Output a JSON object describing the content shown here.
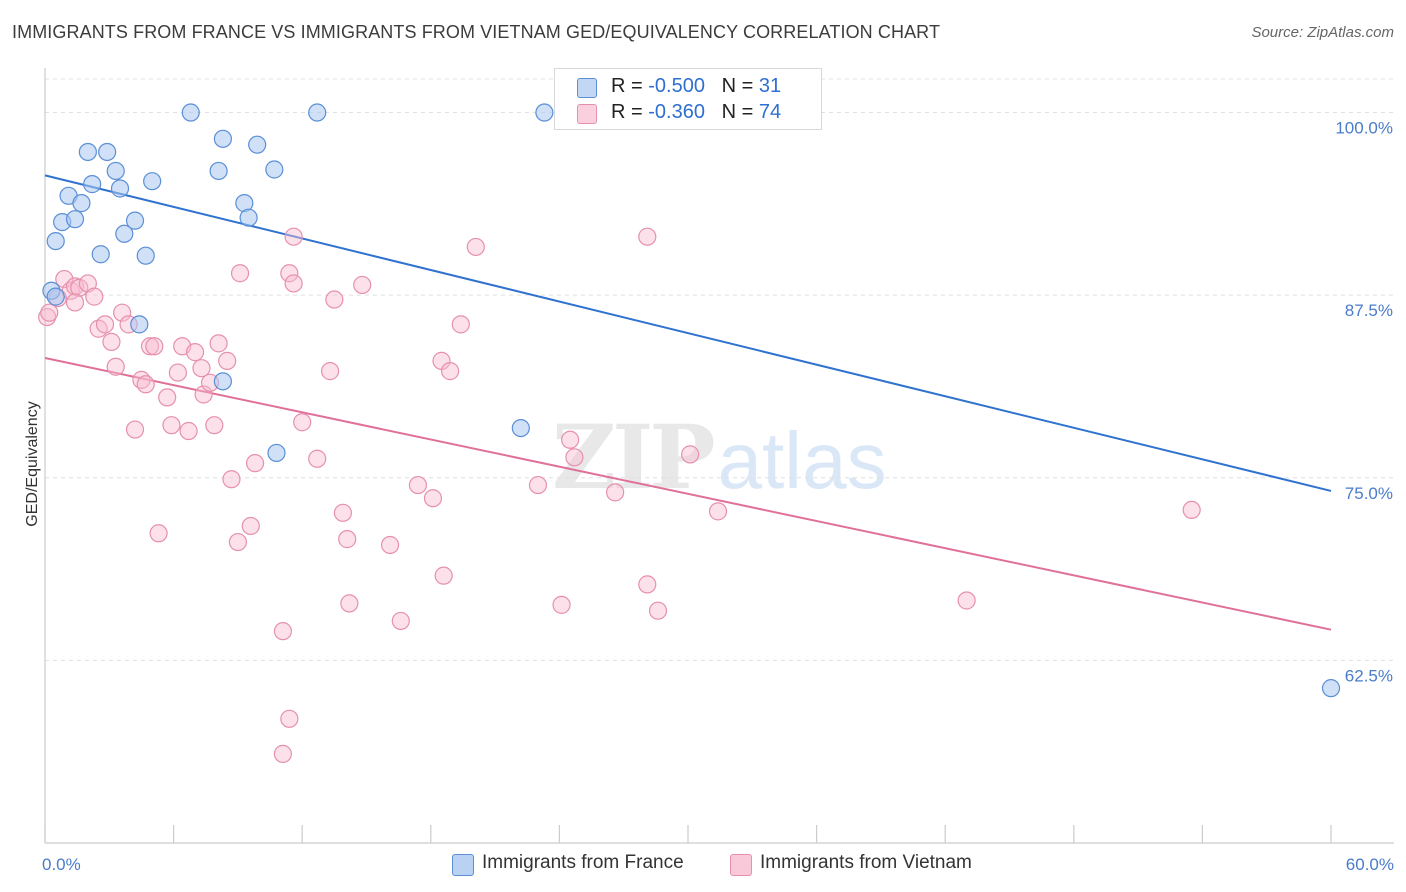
{
  "title": "IMMIGRANTS FROM FRANCE VS IMMIGRANTS FROM VIETNAM GED/EQUIVALENCY CORRELATION CHART",
  "source": "Source: ZipAtlas.com",
  "watermark": {
    "zip": "ZIP",
    "atlas": "atlas"
  },
  "legend_stats": [
    {
      "r_label": "R =",
      "r_value": "-0.500",
      "n_label": "N =",
      "n_value": "31"
    },
    {
      "r_label": "R =",
      "r_value": "-0.360",
      "n_label": "N =",
      "n_value": "74"
    }
  ],
  "colors": {
    "france": "#5b8fd6",
    "vietnam": "#e690ae",
    "france_line": "#2f72cf",
    "vietnam_line": "#e0709a"
  },
  "chart_data": {
    "type": "scatter",
    "title": "IMMIGRANTS FROM FRANCE VS IMMIGRANTS FROM VIETNAM GED/EQUIVALENCY CORRELATION CHART",
    "xlabel": "",
    "ylabel": "GED/Equivalency",
    "xlim": [
      0,
      60
    ],
    "ylim": [
      50,
      102.5
    ],
    "x_tick_labels": [
      "0.0%",
      "60.0%"
    ],
    "y_ticks": [
      {
        "value": 100.0,
        "label": "100.0%"
      },
      {
        "value": 87.5,
        "label": "87.5%"
      },
      {
        "value": 75.0,
        "label": "75.0%"
      },
      {
        "value": 62.5,
        "label": "62.5%"
      }
    ],
    "grid": true,
    "legend_position": "bottom",
    "series": [
      {
        "name": "Immigrants from France",
        "trend": {
          "x": [
            0,
            60
          ],
          "y": [
            95.7,
            74.1
          ]
        },
        "points": [
          [
            0.3,
            87.8
          ],
          [
            0.5,
            87.4
          ],
          [
            0.5,
            91.2
          ],
          [
            0.8,
            92.5
          ],
          [
            1.1,
            94.3
          ],
          [
            1.4,
            92.7
          ],
          [
            1.7,
            93.8
          ],
          [
            2.0,
            97.3
          ],
          [
            2.2,
            95.1
          ],
          [
            2.6,
            90.3
          ],
          [
            2.9,
            97.3
          ],
          [
            3.3,
            96.0
          ],
          [
            3.5,
            94.8
          ],
          [
            3.7,
            91.7
          ],
          [
            4.2,
            92.6
          ],
          [
            4.7,
            90.2
          ],
          [
            5.0,
            95.3
          ],
          [
            4.4,
            85.5
          ],
          [
            6.8,
            100.0
          ],
          [
            8.1,
            96.0
          ],
          [
            8.3,
            98.2
          ],
          [
            8.3,
            81.6
          ],
          [
            9.3,
            93.8
          ],
          [
            9.5,
            92.8
          ],
          [
            9.9,
            97.8
          ],
          [
            10.7,
            96.1
          ],
          [
            10.8,
            76.7
          ],
          [
            12.7,
            100.0
          ],
          [
            22.2,
            78.4
          ],
          [
            23.3,
            100.0
          ],
          [
            60.0,
            60.6
          ]
        ]
      },
      {
        "name": "Immigrants from Vietnam",
        "trend": {
          "x": [
            0,
            60
          ],
          "y": [
            83.2,
            64.6
          ]
        },
        "points": [
          [
            0.1,
            86.0
          ],
          [
            0.6,
            87.3
          ],
          [
            0.9,
            88.6
          ],
          [
            1.2,
            87.8
          ],
          [
            1.4,
            88.1
          ],
          [
            1.6,
            88.0
          ],
          [
            2.0,
            88.3
          ],
          [
            2.3,
            87.4
          ],
          [
            2.5,
            85.2
          ],
          [
            2.8,
            85.5
          ],
          [
            3.1,
            84.3
          ],
          [
            3.3,
            82.6
          ],
          [
            3.6,
            86.3
          ],
          [
            3.9,
            85.5
          ],
          [
            4.2,
            78.3
          ],
          [
            4.5,
            81.7
          ],
          [
            4.7,
            81.4
          ],
          [
            4.9,
            84.0
          ],
          [
            5.1,
            84.0
          ],
          [
            5.3,
            71.2
          ],
          [
            5.7,
            80.5
          ],
          [
            5.9,
            78.6
          ],
          [
            6.2,
            82.2
          ],
          [
            6.4,
            84.0
          ],
          [
            6.7,
            78.2
          ],
          [
            7.0,
            83.6
          ],
          [
            7.3,
            82.5
          ],
          [
            7.4,
            80.7
          ],
          [
            7.7,
            81.5
          ],
          [
            7.9,
            78.6
          ],
          [
            8.1,
            84.2
          ],
          [
            8.5,
            83.0
          ],
          [
            8.7,
            74.9
          ],
          [
            9.0,
            70.6
          ],
          [
            9.1,
            89.0
          ],
          [
            9.6,
            71.7
          ],
          [
            9.8,
            76.0
          ],
          [
            11.1,
            64.5
          ],
          [
            11.4,
            89.0
          ],
          [
            11.6,
            88.3
          ],
          [
            11.6,
            91.5
          ],
          [
            11.4,
            58.5
          ],
          [
            11.1,
            56.1
          ],
          [
            12.0,
            78.8
          ],
          [
            12.7,
            76.3
          ],
          [
            13.3,
            82.3
          ],
          [
            13.5,
            87.2
          ],
          [
            13.9,
            72.6
          ],
          [
            14.1,
            70.8
          ],
          [
            14.2,
            66.4
          ],
          [
            14.8,
            88.2
          ],
          [
            16.1,
            70.4
          ],
          [
            16.6,
            65.2
          ],
          [
            17.4,
            74.5
          ],
          [
            18.1,
            73.6
          ],
          [
            18.6,
            68.3
          ],
          [
            18.5,
            83.0
          ],
          [
            18.9,
            82.3
          ],
          [
            19.4,
            85.5
          ],
          [
            20.1,
            90.8
          ],
          [
            23.0,
            74.5
          ],
          [
            24.1,
            66.3
          ],
          [
            24.5,
            77.6
          ],
          [
            24.7,
            76.4
          ],
          [
            26.6,
            74.0
          ],
          [
            28.1,
            67.7
          ],
          [
            28.6,
            65.9
          ],
          [
            28.1,
            91.5
          ],
          [
            30.1,
            76.6
          ],
          [
            31.4,
            72.7
          ],
          [
            43.0,
            66.6
          ],
          [
            53.5,
            72.8
          ],
          [
            1.4,
            87.0
          ],
          [
            0.2,
            86.3
          ]
        ]
      }
    ]
  },
  "bottom_legend": [
    "Immigrants from France",
    "Immigrants from Vietnam"
  ]
}
